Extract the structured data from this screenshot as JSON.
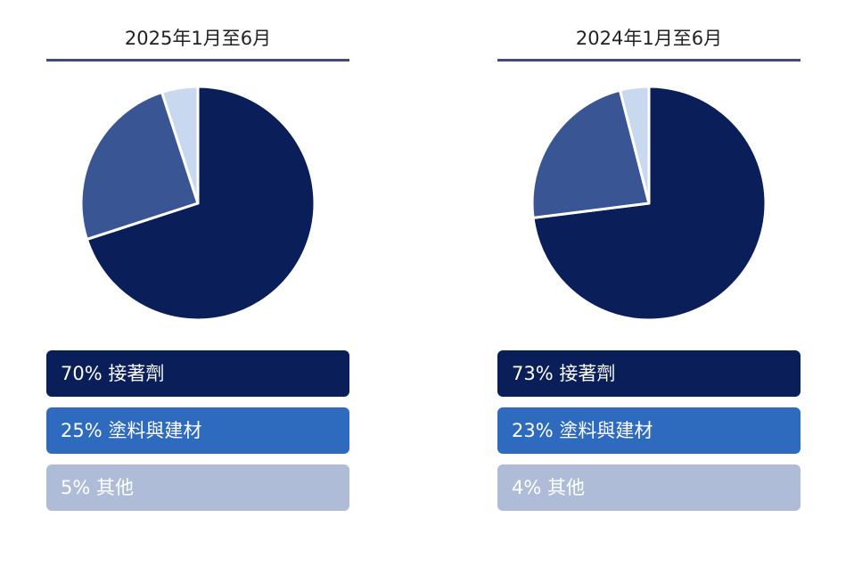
{
  "colors": {
    "slice_dark": "#0a1f5a",
    "slice_mid": "#3a5593",
    "slice_light": "#c8d9ef",
    "legend_dark": "#0a1f5a",
    "legend_mid": "#2e6bbf",
    "legend_light": "#aebcd8"
  },
  "chart_data": [
    {
      "type": "pie",
      "title": "2025年1月至6月",
      "slices": [
        {
          "label": "70% 接著劑",
          "value": 70
        },
        {
          "label": "25% 塗料與建材",
          "value": 25
        },
        {
          "label": "5% 其他",
          "value": 5
        }
      ]
    },
    {
      "type": "pie",
      "title": "2024年1月至6月",
      "slices": [
        {
          "label": "73% 接著劑",
          "value": 73
        },
        {
          "label": "23% 塗料與建材",
          "value": 23
        },
        {
          "label": "4% 其他",
          "value": 4
        }
      ]
    }
  ]
}
